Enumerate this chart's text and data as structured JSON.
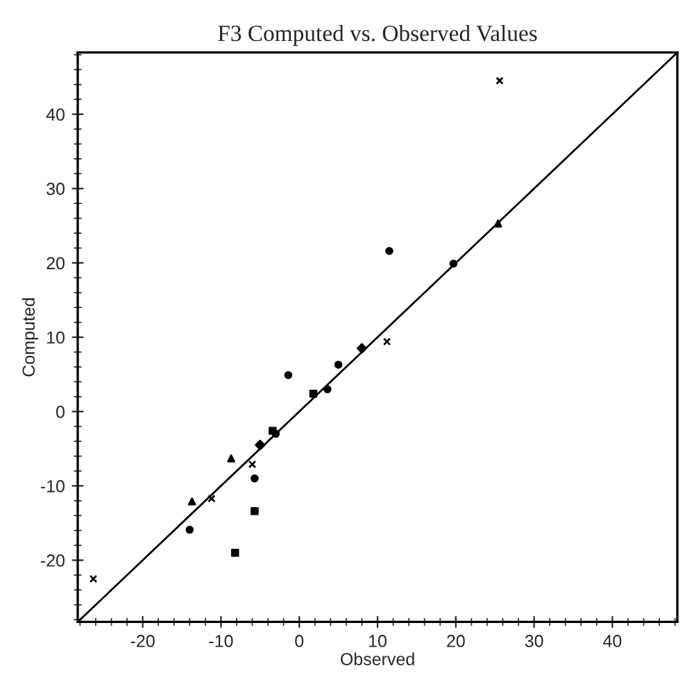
{
  "chart_data": {
    "type": "scatter",
    "title": "F3 Computed vs. Observed Values",
    "xlabel": "Observed",
    "ylabel": "Computed",
    "xlim": [
      -28.3,
      48.3
    ],
    "ylim": [
      -28.3,
      48.3
    ],
    "xticks": [
      -20,
      -10,
      0,
      10,
      20,
      30,
      40
    ],
    "yticks": [
      -20,
      -10,
      0,
      10,
      20,
      30,
      40
    ],
    "grid": false,
    "legend": false,
    "series": [
      {
        "type": "line",
        "color": "#000000",
        "marker": "none",
        "line_style": "solid",
        "x": [
          -28.3,
          48.3
        ],
        "values": [
          -28.3,
          48.3
        ]
      },
      {
        "color": "#000000",
        "marker": "cross",
        "x": [
          -26.3,
          25.6,
          11.2,
          -6.0,
          -11.2
        ],
        "values": [
          -22.5,
          44.5,
          9.4,
          -7.1,
          -11.7
        ]
      },
      {
        "color": "#000000",
        "marker": "triangle",
        "x": [
          25.4,
          -8.7,
          -13.7
        ],
        "values": [
          25.3,
          -6.3,
          -12.1
        ]
      },
      {
        "color": "#000000",
        "marker": "circle",
        "x": [
          19.7,
          11.5,
          5.0,
          -1.4,
          3.6,
          -3.0,
          -5.7,
          -14.0
        ],
        "values": [
          19.9,
          21.6,
          6.3,
          4.9,
          3.0,
          -3.0,
          -9.0,
          -15.9
        ]
      },
      {
        "color": "#000000",
        "marker": "diamond",
        "x": [
          8.0,
          -5.0
        ],
        "values": [
          8.5,
          -4.5
        ]
      },
      {
        "color": "#000000",
        "marker": "square",
        "x": [
          1.8,
          -3.4,
          -5.7,
          -8.2
        ],
        "values": [
          2.4,
          -2.6,
          -13.4,
          -19.0
        ]
      }
    ]
  }
}
